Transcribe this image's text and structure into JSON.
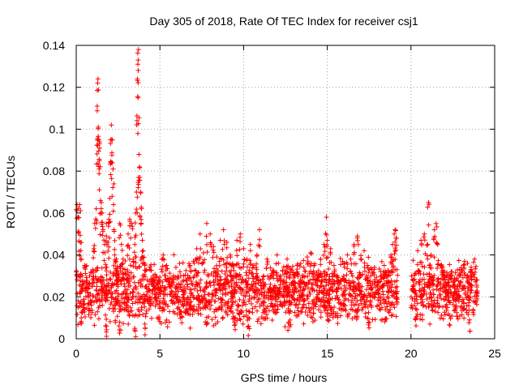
{
  "chart_data": {
    "type": "scatter",
    "title": "Day 305 of 2018, Rate Of TEC Index for receiver csj1",
    "xlabel": "GPS time / hours",
    "ylabel": "ROTI / TECUs",
    "xlim": [
      0,
      25
    ],
    "ylim": [
      0,
      0.14
    ],
    "x_ticks": [
      0,
      5,
      10,
      15,
      20,
      25
    ],
    "x_tick_labels": [
      "0",
      "5",
      "10",
      "15",
      "20",
      "25"
    ],
    "y_ticks": [
      0,
      0.02,
      0.04,
      0.06,
      0.08,
      0.1,
      0.12,
      0.14
    ],
    "y_tick_labels": [
      "0",
      "0.02",
      "0.04",
      "0.06",
      "0.08",
      "0.1",
      "0.12",
      "0.14"
    ],
    "grid": true,
    "marker": "+",
    "color": "#ff0000",
    "series": [
      {
        "name": "ROTI",
        "points": [
          [
            0.05,
            0.064
          ],
          [
            0.1,
            0.058
          ],
          [
            0.15,
            0.051
          ],
          [
            0.2,
            0.064
          ],
          [
            0.25,
            0.046
          ],
          [
            0.3,
            0.038
          ],
          [
            0.35,
            0.03
          ],
          [
            0.4,
            0.018
          ],
          [
            0.5,
            0.035
          ],
          [
            0.6,
            0.027
          ],
          [
            0.7,
            0.022
          ],
          [
            0.8,
            0.03
          ],
          [
            0.9,
            0.016
          ],
          [
            1.0,
            0.027
          ],
          [
            1.05,
            0.043
          ],
          [
            1.1,
            0.055
          ],
          [
            1.2,
            0.062
          ],
          [
            1.25,
            0.111
          ],
          [
            1.28,
            0.122
          ],
          [
            1.3,
            0.124
          ],
          [
            1.32,
            0.101
          ],
          [
            1.35,
            0.095
          ],
          [
            1.38,
            0.093
          ],
          [
            1.4,
            0.091
          ],
          [
            1.45,
            0.066
          ],
          [
            1.5,
            0.065
          ],
          [
            1.55,
            0.06
          ],
          [
            1.6,
            0.052
          ],
          [
            1.7,
            0.045
          ],
          [
            1.8,
            0.055
          ],
          [
            1.9,
            0.046
          ],
          [
            1.95,
            0.057
          ],
          [
            2.0,
            0.067
          ],
          [
            2.05,
            0.095
          ],
          [
            2.1,
            0.102
          ],
          [
            2.12,
            0.095
          ],
          [
            2.15,
            0.084
          ],
          [
            2.2,
            0.081
          ],
          [
            2.25,
            0.052
          ],
          [
            2.3,
            0.04
          ],
          [
            2.4,
            0.038
          ],
          [
            2.5,
            0.03
          ],
          [
            2.6,
            0.055
          ],
          [
            2.7,
            0.045
          ],
          [
            2.8,
            0.038
          ],
          [
            2.9,
            0.025
          ],
          [
            3.0,
            0.028
          ],
          [
            3.1,
            0.05
          ],
          [
            3.2,
            0.057
          ],
          [
            3.3,
            0.055
          ],
          [
            3.4,
            0.038
          ],
          [
            3.5,
            0.045
          ],
          [
            3.55,
            0.06
          ],
          [
            3.6,
            0.07
          ],
          [
            3.65,
            0.124
          ],
          [
            3.68,
            0.131
          ],
          [
            3.7,
            0.133
          ],
          [
            3.72,
            0.138
          ],
          [
            3.75,
            0.088
          ],
          [
            3.78,
            0.082
          ],
          [
            3.8,
            0.077
          ],
          [
            3.85,
            0.07
          ],
          [
            3.9,
            0.062
          ],
          [
            3.95,
            0.047
          ],
          [
            4.0,
            0.042
          ],
          [
            4.1,
            0.035
          ],
          [
            4.2,
            0.025
          ],
          [
            4.4,
            0.02
          ],
          [
            4.6,
            0.03
          ],
          [
            4.8,
            0.022
          ],
          [
            5.0,
            0.028
          ],
          [
            5.2,
            0.04
          ],
          [
            5.4,
            0.035
          ],
          [
            5.6,
            0.027
          ],
          [
            5.8,
            0.03
          ],
          [
            6.0,
            0.025
          ],
          [
            6.2,
            0.032
          ],
          [
            6.4,
            0.021
          ],
          [
            6.6,
            0.028
          ],
          [
            6.8,
            0.035
          ],
          [
            7.0,
            0.037
          ],
          [
            7.2,
            0.043
          ],
          [
            7.4,
            0.05
          ],
          [
            7.6,
            0.041
          ],
          [
            7.8,
            0.055
          ],
          [
            8.0,
            0.05
          ],
          [
            8.2,
            0.044
          ],
          [
            8.4,
            0.039
          ],
          [
            8.6,
            0.047
          ],
          [
            8.8,
            0.052
          ],
          [
            9.0,
            0.046
          ],
          [
            9.2,
            0.04
          ],
          [
            9.4,
            0.035
          ],
          [
            9.6,
            0.047
          ],
          [
            9.8,
            0.05
          ],
          [
            10.0,
            0.043
          ],
          [
            10.2,
            0.038
          ],
          [
            10.4,
            0.045
          ],
          [
            10.6,
            0.035
          ],
          [
            10.8,
            0.04
          ],
          [
            10.95,
            0.052
          ],
          [
            11.2,
            0.03
          ],
          [
            11.4,
            0.038
          ],
          [
            11.6,
            0.026
          ],
          [
            11.8,
            0.032
          ],
          [
            12.0,
            0.04
          ],
          [
            12.2,
            0.03
          ],
          [
            12.4,
            0.028
          ],
          [
            12.6,
            0.038
          ],
          [
            12.8,
            0.033
          ],
          [
            13.0,
            0.029
          ],
          [
            13.2,
            0.035
          ],
          [
            13.4,
            0.028
          ],
          [
            13.6,
            0.034
          ],
          [
            13.8,
            0.039
          ],
          [
            14.0,
            0.041
          ],
          [
            14.2,
            0.035
          ],
          [
            14.4,
            0.03
          ],
          [
            14.6,
            0.038
          ],
          [
            14.8,
            0.045
          ],
          [
            14.95,
            0.058
          ],
          [
            15.0,
            0.047
          ],
          [
            15.2,
            0.043
          ],
          [
            15.4,
            0.035
          ],
          [
            15.6,
            0.03
          ],
          [
            15.8,
            0.028
          ],
          [
            16.0,
            0.036
          ],
          [
            16.2,
            0.04
          ],
          [
            16.4,
            0.038
          ],
          [
            16.6,
            0.045
          ],
          [
            16.8,
            0.049
          ],
          [
            17.0,
            0.038
          ],
          [
            17.2,
            0.042
          ],
          [
            17.4,
            0.035
          ],
          [
            17.6,
            0.03
          ],
          [
            17.8,
            0.033
          ],
          [
            18.0,
            0.027
          ],
          [
            18.2,
            0.032
          ],
          [
            18.4,
            0.035
          ],
          [
            18.6,
            0.03
          ],
          [
            18.8,
            0.04
          ],
          [
            18.9,
            0.045
          ],
          [
            19.0,
            0.05
          ],
          [
            19.05,
            0.052
          ],
          [
            19.1,
            0.048
          ],
          [
            20.1,
            0.028
          ],
          [
            20.2,
            0.023
          ],
          [
            20.4,
            0.042
          ],
          [
            20.6,
            0.047
          ],
          [
            20.8,
            0.05
          ],
          [
            21.0,
            0.045
          ],
          [
            21.05,
            0.065
          ],
          [
            21.2,
            0.04
          ],
          [
            21.4,
            0.052
          ],
          [
            21.5,
            0.055
          ],
          [
            21.6,
            0.045
          ],
          [
            21.8,
            0.035
          ],
          [
            22.0,
            0.03
          ],
          [
            22.2,
            0.027
          ],
          [
            22.4,
            0.032
          ],
          [
            22.6,
            0.028
          ],
          [
            22.8,
            0.025
          ],
          [
            23.0,
            0.034
          ],
          [
            23.2,
            0.037
          ],
          [
            23.4,
            0.03
          ],
          [
            23.6,
            0.033
          ],
          [
            23.8,
            0.038
          ],
          [
            23.9,
            0.028
          ],
          [
            23.95,
            0.022
          ],
          [
            0.3,
            0.01
          ],
          [
            1.8,
            0.006
          ],
          [
            2.6,
            0.008
          ],
          [
            3.5,
            0.005
          ],
          [
            4.1,
            0.007
          ],
          [
            9.5,
            0.01
          ],
          [
            10.3,
            0.006
          ],
          [
            12.7,
            0.008
          ],
          [
            17.5,
            0.008
          ],
          [
            20.3,
            0.01
          ],
          [
            22.3,
            0.011
          ],
          [
            23.5,
            0.009
          ]
        ],
        "baseline_segments": [
          {
            "x_start": 0.0,
            "x_end": 19.2,
            "y_low": 0.01,
            "y_high": 0.03
          },
          {
            "x_start": 20.0,
            "x_end": 24.0,
            "y_low": 0.012,
            "y_high": 0.03
          }
        ]
      }
    ]
  }
}
